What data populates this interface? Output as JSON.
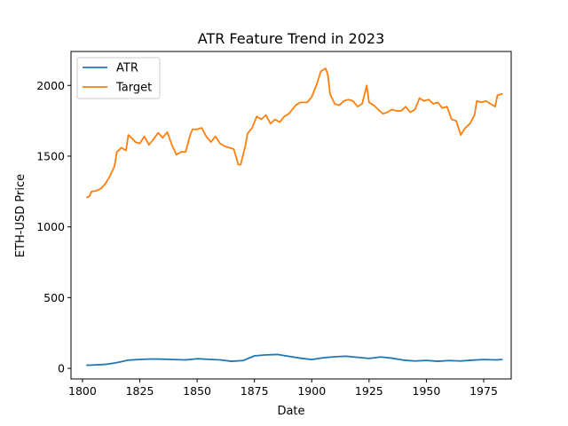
{
  "chart_data": {
    "type": "line",
    "title": "ATR Feature Trend in 2023",
    "xlabel": "Date",
    "ylabel": "ETH-USD Price",
    "xlim": [
      1795,
      1987
    ],
    "ylim": [
      -75,
      2240
    ],
    "x_ticks": [
      1800,
      1825,
      1850,
      1875,
      1900,
      1925,
      1950,
      1975
    ],
    "y_ticks": [
      0,
      500,
      1000,
      1500,
      2000
    ],
    "grid": false,
    "legend": "top-left",
    "series": [
      {
        "name": "ATR",
        "color": "#1f77b4",
        "points": [
          [
            1802,
            22
          ],
          [
            1805,
            24
          ],
          [
            1810,
            28
          ],
          [
            1815,
            40
          ],
          [
            1820,
            58
          ],
          [
            1825,
            63
          ],
          [
            1830,
            66
          ],
          [
            1835,
            65
          ],
          [
            1840,
            62
          ],
          [
            1845,
            60
          ],
          [
            1850,
            68
          ],
          [
            1855,
            64
          ],
          [
            1860,
            60
          ],
          [
            1865,
            50
          ],
          [
            1870,
            55
          ],
          [
            1875,
            88
          ],
          [
            1880,
            95
          ],
          [
            1885,
            98
          ],
          [
            1890,
            85
          ],
          [
            1895,
            72
          ],
          [
            1900,
            62
          ],
          [
            1905,
            75
          ],
          [
            1910,
            82
          ],
          [
            1915,
            86
          ],
          [
            1920,
            78
          ],
          [
            1925,
            70
          ],
          [
            1930,
            80
          ],
          [
            1935,
            72
          ],
          [
            1940,
            58
          ],
          [
            1945,
            52
          ],
          [
            1950,
            56
          ],
          [
            1955,
            50
          ],
          [
            1960,
            55
          ],
          [
            1965,
            52
          ],
          [
            1970,
            58
          ],
          [
            1975,
            62
          ],
          [
            1980,
            60
          ],
          [
            1983,
            62
          ]
        ]
      },
      {
        "name": "Target",
        "color": "#ff7f0e",
        "points": [
          [
            1802,
            1210
          ],
          [
            1803,
            1215
          ],
          [
            1804,
            1250
          ],
          [
            1806,
            1255
          ],
          [
            1808,
            1270
          ],
          [
            1810,
            1305
          ],
          [
            1812,
            1360
          ],
          [
            1814,
            1430
          ],
          [
            1815,
            1530
          ],
          [
            1817,
            1560
          ],
          [
            1819,
            1540
          ],
          [
            1820,
            1650
          ],
          [
            1822,
            1620
          ],
          [
            1823,
            1600
          ],
          [
            1825,
            1590
          ],
          [
            1827,
            1640
          ],
          [
            1829,
            1580
          ],
          [
            1831,
            1620
          ],
          [
            1833,
            1665
          ],
          [
            1835,
            1630
          ],
          [
            1837,
            1670
          ],
          [
            1839,
            1580
          ],
          [
            1841,
            1510
          ],
          [
            1843,
            1530
          ],
          [
            1845,
            1530
          ],
          [
            1847,
            1650
          ],
          [
            1848,
            1690
          ],
          [
            1850,
            1690
          ],
          [
            1852,
            1700
          ],
          [
            1854,
            1640
          ],
          [
            1856,
            1600
          ],
          [
            1858,
            1640
          ],
          [
            1860,
            1590
          ],
          [
            1862,
            1570
          ],
          [
            1864,
            1560
          ],
          [
            1866,
            1550
          ],
          [
            1868,
            1440
          ],
          [
            1869,
            1440
          ],
          [
            1871,
            1570
          ],
          [
            1872,
            1660
          ],
          [
            1874,
            1700
          ],
          [
            1876,
            1780
          ],
          [
            1878,
            1760
          ],
          [
            1880,
            1790
          ],
          [
            1882,
            1730
          ],
          [
            1884,
            1760
          ],
          [
            1886,
            1740
          ],
          [
            1888,
            1780
          ],
          [
            1890,
            1800
          ],
          [
            1893,
            1860
          ],
          [
            1895,
            1880
          ],
          [
            1898,
            1880
          ],
          [
            1900,
            1920
          ],
          [
            1902,
            2000
          ],
          [
            1904,
            2100
          ],
          [
            1906,
            2120
          ],
          [
            1907,
            2080
          ],
          [
            1908,
            1940
          ],
          [
            1910,
            1870
          ],
          [
            1912,
            1860
          ],
          [
            1914,
            1890
          ],
          [
            1916,
            1900
          ],
          [
            1918,
            1890
          ],
          [
            1920,
            1850
          ],
          [
            1922,
            1870
          ],
          [
            1924,
            2000
          ],
          [
            1925,
            1880
          ],
          [
            1927,
            1860
          ],
          [
            1929,
            1830
          ],
          [
            1931,
            1800
          ],
          [
            1933,
            1810
          ],
          [
            1935,
            1830
          ],
          [
            1937,
            1820
          ],
          [
            1939,
            1820
          ],
          [
            1941,
            1850
          ],
          [
            1943,
            1810
          ],
          [
            1945,
            1830
          ],
          [
            1947,
            1910
          ],
          [
            1949,
            1890
          ],
          [
            1951,
            1900
          ],
          [
            1953,
            1870
          ],
          [
            1955,
            1880
          ],
          [
            1957,
            1840
          ],
          [
            1959,
            1850
          ],
          [
            1961,
            1760
          ],
          [
            1963,
            1750
          ],
          [
            1965,
            1650
          ],
          [
            1967,
            1700
          ],
          [
            1969,
            1730
          ],
          [
            1971,
            1790
          ],
          [
            1972,
            1890
          ],
          [
            1974,
            1880
          ],
          [
            1976,
            1890
          ],
          [
            1978,
            1870
          ],
          [
            1980,
            1850
          ],
          [
            1981,
            1930
          ],
          [
            1983,
            1940
          ]
        ]
      }
    ]
  }
}
